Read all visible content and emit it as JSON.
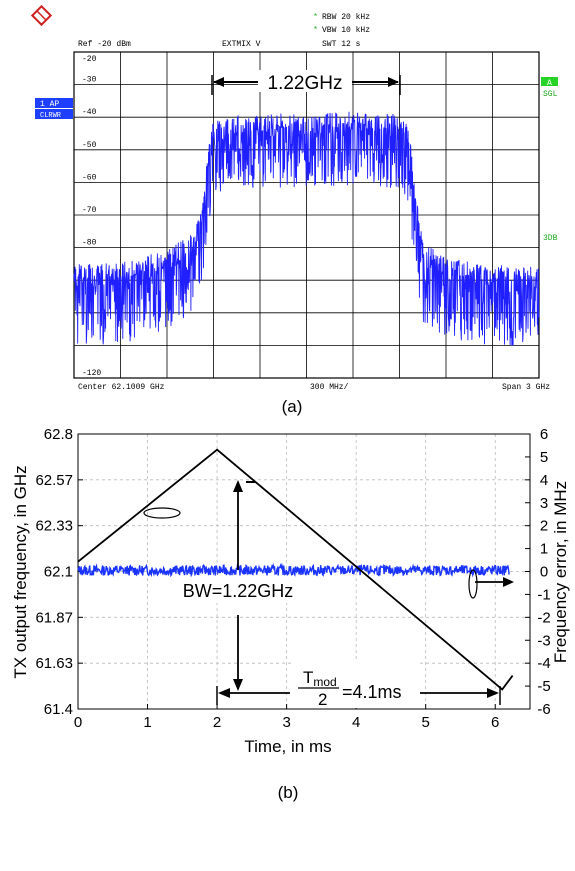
{
  "chart_data": [
    {
      "type": "line",
      "panel_label": "(a)",
      "y_tick_labels": [
        "-20",
        "-30",
        "-40",
        "-50",
        "-60",
        "-70",
        "-80",
        "-120"
      ],
      "ylim": [
        -120,
        -20
      ],
      "x_divisions": 10,
      "header": {
        "ref": "Ref -20 dBm",
        "mixer": "EXTMIX V",
        "rbw": "RBW 20 kHz",
        "vbw": "VBW 10 kHz",
        "swt": "SWT 12 s"
      },
      "footer": {
        "center": "Center 62.1009 GHz",
        "div": "300 MHz/",
        "span": "Span 3 GHz"
      },
      "left_badges": [
        "1 AP",
        "CLRWR"
      ],
      "right_badges": [
        "A",
        "SGL",
        "3DB"
      ],
      "annotation": "1.22GHz",
      "series": [
        {
          "color": "#1f1fff",
          "x": [
            0,
            0.5,
            1.0,
            1.5,
            2.0,
            2.5,
            2.7,
            2.8,
            2.9,
            3.0,
            3.5,
            4.0,
            5.0,
            6.0,
            6.5,
            7.0,
            7.2,
            7.35,
            7.5,
            8.0,
            9.0,
            10.0
          ],
          "y": [
            -92,
            -92,
            -91.5,
            -90,
            -87,
            -83,
            -78,
            -68,
            -55,
            -48,
            -46,
            -46,
            -45.5,
            -45,
            -45.5,
            -46,
            -50,
            -70,
            -85,
            -90,
            -92,
            -93
          ]
        }
      ]
    },
    {
      "type": "line",
      "panel_label": "(b)",
      "xlabel": "Time, in ms",
      "ylabel": "TX output frequency, in GHz",
      "y2label": "Frequency error, in MHz",
      "x_ticks": [
        "0",
        "1",
        "2",
        "3",
        "4",
        "5",
        "6"
      ],
      "y_ticks": [
        "62.8",
        "62.57",
        "62.33",
        "62.1",
        "61.87",
        "61.63",
        "61.4"
      ],
      "y2_ticks": [
        "6",
        "5",
        "4",
        "3",
        "2",
        "1",
        "0",
        "-1",
        "-2",
        "-3",
        "-4",
        "-5",
        "-6"
      ],
      "xlim": [
        0,
        6.5
      ],
      "ylim": [
        61.4,
        62.8
      ],
      "y2lim": [
        -6,
        6
      ],
      "grid": true,
      "annotations": {
        "bw": "BW=1.22GHz",
        "tmod_num": "T",
        "tmod_sub": "mod",
        "tmod_den": "2",
        "tmod_val": "=4.1ms"
      },
      "series": [
        {
          "color": "#000000",
          "axis": "left",
          "x": [
            0,
            2.0,
            6.1,
            6.25
          ],
          "y": [
            62.15,
            62.72,
            61.5,
            61.57
          ]
        },
        {
          "color": "#1a33ff",
          "axis": "right",
          "x": [
            0,
            6.2
          ],
          "y": [
            0.05,
            0.05
          ]
        }
      ]
    }
  ]
}
